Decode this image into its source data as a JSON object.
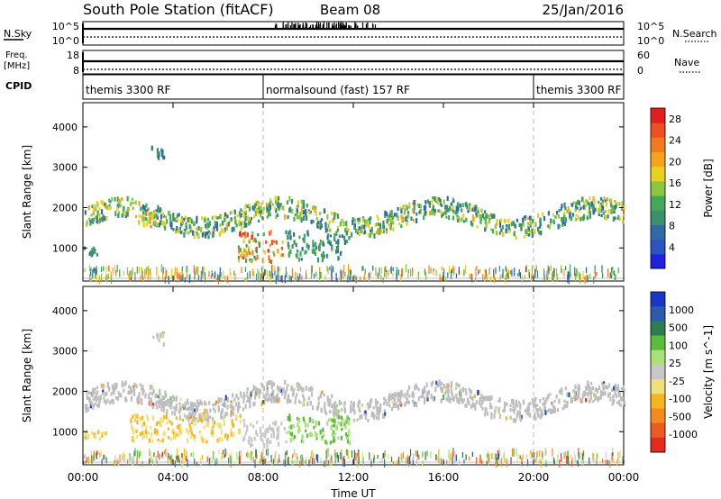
{
  "header": {
    "station": "South Pole Station (fitACF)",
    "beam": "Beam 08",
    "date": "25/Jan/2016"
  },
  "strip": {
    "nsky_label": "N.Sky",
    "nsky_ticks": [
      "10^5",
      "10^0"
    ],
    "nsearch_label": "N.Search",
    "nsearch_ticks": [
      "10^5",
      "10^0"
    ],
    "freq_label_top": "Freq.",
    "freq_label_bottom": "[MHz]",
    "freq_ticks": [
      "18",
      "8"
    ],
    "nave_label": "Nave",
    "nave_ticks": [
      "60",
      "0"
    ],
    "cpid_label": "CPID"
  },
  "cpid_segments": [
    {
      "label": "themis 3300 RF",
      "start_h": 0,
      "end_h": 8
    },
    {
      "label": "normalsound (fast) 157 RF",
      "start_h": 8,
      "end_h": 20
    },
    {
      "label": "themis 3300 RF",
      "start_h": 20,
      "end_h": 24
    }
  ],
  "colors": {
    "power_scale": [
      "#1f20e0",
      "#2a55c0",
      "#2f6aa6",
      "#3a8f6e",
      "#43a85a",
      "#8cc63f",
      "#e6d21c",
      "#f5a31a",
      "#f07b1f",
      "#ec4f22",
      "#e21f1f"
    ],
    "velocity_scale": [
      "#1a36c8",
      "#2a5cab",
      "#2e7d4e",
      "#5bbb3a",
      "#a9e27a",
      "#c8c8c8",
      "#f0e07a",
      "#f5b520",
      "#f58a1e",
      "#ee5a24",
      "#e22a1f"
    ],
    "ground_scatter": "#bdbdbd"
  },
  "chart_data": [
    {
      "type": "heatmap",
      "title": "Power",
      "xlabel": "Time UT",
      "ylabel": "Slant Range [km]",
      "x_ticks": [
        "00:00",
        "04:00",
        "08:00",
        "12:00",
        "16:00",
        "20:00",
        "00:00"
      ],
      "xlim_hours": [
        0,
        24
      ],
      "ylim_km": [
        180,
        4600
      ],
      "y_ticks": [
        1000,
        2000,
        3000,
        4000
      ],
      "colorbar_label": "Power [dB]",
      "colorbar_ticks": [
        4,
        8,
        12,
        16,
        20,
        24,
        28
      ],
      "colorbar_range": [
        0,
        30
      ],
      "echo_bands": [
        {
          "t": [
            0.0,
            24.0
          ],
          "range_km": [
            1600,
            2400
          ],
          "value_db": [
            6,
            20
          ]
        },
        {
          "t": [
            3.0,
            3.6
          ],
          "range_km": [
            3150,
            3500
          ],
          "value_db": [
            6,
            12
          ]
        },
        {
          "t": [
            2.2,
            3.2
          ],
          "range_km": [
            1500,
            1900
          ],
          "value_db": [
            12,
            24
          ]
        },
        {
          "t": [
            6.8,
            9.0
          ],
          "range_km": [
            650,
            1400
          ],
          "value_db": [
            10,
            30
          ]
        },
        {
          "t": [
            9.0,
            11.8
          ],
          "range_km": [
            700,
            1400
          ],
          "value_db": [
            6,
            14
          ]
        },
        {
          "t": [
            0.0,
            0.6
          ],
          "range_km": [
            800,
            1000
          ],
          "value_db": [
            6,
            12
          ]
        },
        {
          "t": [
            0.0,
            24.0
          ],
          "range_km": [
            200,
            500
          ],
          "value_db": [
            4,
            24
          ]
        }
      ]
    },
    {
      "type": "heatmap",
      "title": "Velocity",
      "xlabel": "Time UT",
      "ylabel": "Slant Range [km]",
      "x_ticks": [
        "00:00",
        "04:00",
        "08:00",
        "12:00",
        "16:00",
        "20:00",
        "00:00"
      ],
      "xlim_hours": [
        0,
        24
      ],
      "ylim_km": [
        180,
        4600
      ],
      "y_ticks": [
        1000,
        2000,
        3000,
        4000
      ],
      "colorbar_label": "Velocity [m s^-1]",
      "colorbar_ticks": [
        1000,
        500,
        100,
        25,
        -25,
        -100,
        -500,
        -1000
      ],
      "colorbar_range": [
        -1200,
        1200
      ],
      "echo_bands": [
        {
          "t": [
            0.0,
            24.0
          ],
          "range_km": [
            1600,
            2500
          ],
          "velocity": [
            -25,
            25
          ],
          "ground_scatter": true
        },
        {
          "t": [
            3.0,
            3.6
          ],
          "range_km": [
            3150,
            3500
          ],
          "velocity": [
            -25,
            25
          ],
          "ground_scatter": true
        },
        {
          "t": [
            0.0,
            1.0
          ],
          "range_km": [
            800,
            1000
          ],
          "velocity": [
            -500,
            -100
          ]
        },
        {
          "t": [
            2.0,
            7.0
          ],
          "range_km": [
            750,
            1400
          ],
          "velocity": [
            -500,
            -100
          ]
        },
        {
          "t": [
            7.0,
            9.0
          ],
          "range_km": [
            650,
            1300
          ],
          "velocity": [
            -100,
            25
          ]
        },
        {
          "t": [
            9.0,
            11.8
          ],
          "range_km": [
            700,
            1400
          ],
          "velocity": [
            100,
            500
          ]
        },
        {
          "t": [
            0.0,
            24.0
          ],
          "range_km": [
            200,
            500
          ],
          "velocity": [
            -1000,
            1000
          ]
        }
      ]
    }
  ]
}
